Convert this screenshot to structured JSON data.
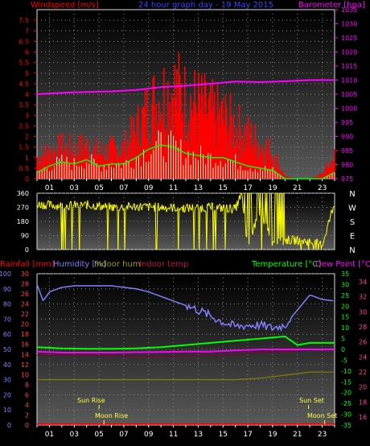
{
  "header": {
    "windspeed_label": "Windspeed [m/s]",
    "title": "24 hour graph day - 19 May 2015",
    "barometer_label": "Barometer [hpa]"
  },
  "bottom_header": {
    "rainfall_label": "Rainfall [mm]",
    "humidity_label": "Humidity [%]",
    "indoor_hum_label": "Indoor hum",
    "indoor_temp_label": "Indoor temp",
    "temperature_label": "Temperature [°C]",
    "dewpoint_label": "Dew Point [°C]"
  },
  "annotations": {
    "sun_rise": "Sun Rise",
    "moon_rise": "Moon Rise",
    "sun_set": "Sun Set",
    "moon_set": "Moon Set"
  },
  "colors": {
    "windspeed": "#ff0000",
    "gust": "#00ff00",
    "barometer": "#ff00ff",
    "direction": "#ffff00",
    "humidity": "#8080ff",
    "temperature": "#00ff00",
    "dewpoint": "#ff00ff",
    "indoor_hum": "#808000",
    "indoor_temp": "#800040",
    "rain": "#ff0000"
  },
  "x_ticks": [
    "01",
    "03",
    "05",
    "07",
    "09",
    "11",
    "13",
    "15",
    "17",
    "19",
    "21",
    "23"
  ],
  "chart_data": [
    {
      "type": "bar",
      "name": "wind",
      "x_range": [
        0,
        24
      ],
      "y_left": {
        "label": "Windspeed [m/s]",
        "ylim": [
          0,
          8
        ],
        "ticks": [
          "0",
          "0.5",
          "1",
          "1.5",
          "2",
          "2.5",
          "3",
          "3.5",
          "4",
          "4.5",
          "5",
          "5.5",
          "6",
          "6.5",
          "7",
          "7.5"
        ]
      },
      "y_right": {
        "label": "Barometer [hpa]",
        "ylim": [
          975,
          1035
        ],
        "ticks": [
          "975",
          "980",
          "985",
          "990",
          "995",
          "1000",
          "1005",
          "1010",
          "1015",
          "1020",
          "1025",
          "1030",
          "1035"
        ]
      },
      "series": [
        {
          "name": "Windspeed",
          "x": [
            0,
            1,
            2,
            3,
            4,
            5,
            6,
            7,
            8,
            9,
            10,
            11,
            12,
            13,
            14,
            15,
            16,
            17,
            18,
            19,
            20,
            21,
            22,
            23,
            24
          ],
          "values": [
            1.0,
            1.2,
            1.4,
            1.3,
            1.5,
            1.2,
            1.3,
            1.4,
            2.2,
            3.2,
            3.8,
            4.2,
            3.6,
            3.4,
            3.0,
            2.8,
            2.4,
            2.0,
            1.6,
            1.2,
            0.1,
            0,
            0,
            0.2,
            1.0
          ]
        },
        {
          "name": "Gust",
          "x": [
            0,
            1,
            2,
            3,
            4,
            5,
            6,
            7,
            8,
            9,
            10,
            11,
            12,
            13,
            14,
            15,
            16,
            17,
            18,
            19,
            20,
            21,
            22,
            23,
            24
          ],
          "values": [
            0.3,
            0.6,
            0.8,
            0.7,
            0.9,
            0.6,
            0.7,
            0.7,
            1.0,
            1.4,
            1.6,
            1.5,
            1.2,
            1.1,
            1.0,
            1.0,
            0.8,
            0.6,
            0.5,
            0.4,
            0,
            0,
            0,
            0,
            0.3
          ]
        },
        {
          "name": "Barometer",
          "x": [
            0,
            2,
            4,
            6,
            8,
            10,
            12,
            14,
            16,
            18,
            20,
            22,
            24
          ],
          "values": [
            1005,
            1005.5,
            1005.8,
            1006,
            1006.5,
            1007.5,
            1008,
            1008.7,
            1009.5,
            1009.3,
            1009.6,
            1010,
            1010
          ]
        }
      ]
    },
    {
      "type": "line",
      "name": "wind direction",
      "x_range": [
        0,
        24
      ],
      "y_left": {
        "ylim": [
          0,
          360
        ],
        "ticks": [
          "0",
          "90",
          "180",
          "270",
          "360"
        ]
      },
      "y_right": {
        "ticks": [
          "N",
          "W",
          "S",
          "E",
          "N"
        ]
      },
      "series": [
        {
          "name": "Direction",
          "x": [
            0,
            2,
            4,
            6,
            8,
            10,
            12,
            14,
            16,
            16.5,
            17,
            18,
            19,
            20,
            21,
            22,
            23,
            24
          ],
          "values": [
            290,
            280,
            285,
            270,
            275,
            270,
            265,
            270,
            260,
            360,
            20,
            250,
            40,
            60,
            60,
            50,
            30,
            300
          ]
        }
      ]
    },
    {
      "type": "line",
      "name": "temperature and humidity",
      "x_range": [
        0,
        24
      ],
      "y_left": {
        "label": "Humidity [%]",
        "ylim": [
          0,
          100
        ],
        "ticks": [
          "0",
          "10",
          "20",
          "30",
          "40",
          "50",
          "60",
          "70",
          "80",
          "90",
          "100"
        ]
      },
      "y_left2": {
        "label": "Rainfall [mm]",
        "ylim": [
          0,
          30
        ],
        "ticks": [
          "0",
          "2",
          "4",
          "6",
          "8",
          "10",
          "12",
          "14",
          "16",
          "18",
          "20",
          "22",
          "24",
          "26",
          "28",
          "30"
        ]
      },
      "y_right": {
        "label": "Temperature [°C]",
        "ylim": [
          -35,
          35
        ],
        "ticks": [
          "-35",
          "-30",
          "-25",
          "-20",
          "-15",
          "-10",
          "-5",
          "0",
          "5",
          "10",
          "15",
          "20",
          "25",
          "30",
          "35"
        ]
      },
      "y_right2": {
        "ticks": [
          "16",
          "18",
          "20",
          "22",
          "24",
          "26",
          "28",
          "30",
          "32",
          "34"
        ]
      },
      "series": [
        {
          "name": "Humidity",
          "x": [
            0,
            0.5,
            1,
            2,
            3,
            4,
            5,
            6,
            7,
            8,
            9,
            10,
            11,
            12,
            13,
            14,
            15,
            16,
            17,
            18,
            19,
            20,
            21,
            22,
            23,
            24
          ],
          "values": [
            93,
            82,
            88,
            91,
            92,
            92,
            92,
            92,
            91,
            90,
            88,
            85,
            82,
            79,
            76,
            72,
            68,
            65,
            66,
            66,
            64,
            66,
            76,
            86,
            83,
            82
          ]
        },
        {
          "name": "Temperature",
          "x": [
            0,
            2,
            4,
            6,
            8,
            10,
            12,
            14,
            16,
            18,
            20,
            21,
            22,
            24
          ],
          "values": [
            1,
            0.5,
            0.3,
            0.3,
            0.5,
            1,
            2,
            3,
            4,
            5,
            6,
            2,
            3,
            3
          ]
        },
        {
          "name": "Dew Point",
          "x": [
            0,
            2,
            4,
            6,
            8,
            10,
            12,
            14,
            16,
            18,
            20,
            22,
            24
          ],
          "values": [
            -1,
            -1.5,
            -1.5,
            -1.5,
            -1.3,
            -1.2,
            -1,
            -1,
            -0.5,
            0,
            0,
            0,
            0
          ]
        },
        {
          "name": "Indoor hum",
          "x": [
            0,
            6,
            12,
            16,
            18,
            20,
            22,
            24
          ],
          "values": [
            30,
            30,
            30,
            30,
            31,
            33,
            35,
            35
          ]
        },
        {
          "name": "Indoor temp",
          "x": [
            0,
            4,
            8,
            12,
            16,
            20,
            22,
            24
          ],
          "values": [
            24.3,
            24.3,
            24.2,
            24.2,
            24.4,
            24.8,
            25,
            25
          ]
        },
        {
          "name": "Rainfall",
          "x": [
            0,
            24
          ],
          "values": [
            0.2,
            0.2
          ]
        }
      ]
    }
  ]
}
